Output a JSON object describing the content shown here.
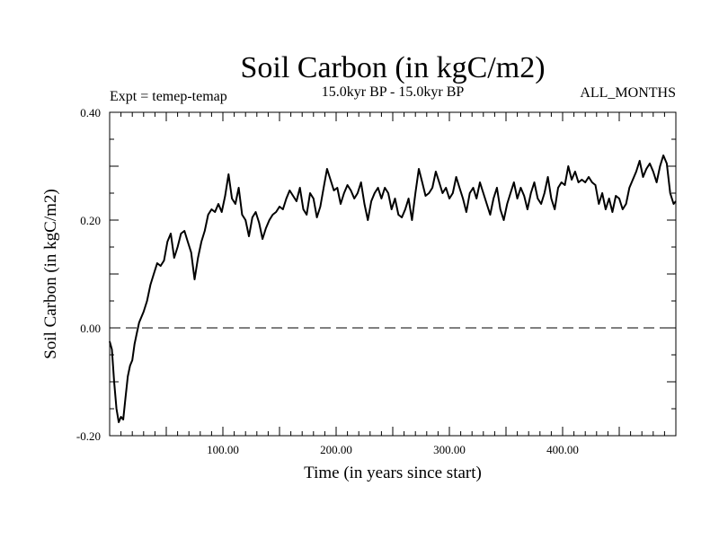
{
  "chart_data": {
    "type": "line",
    "title": "Soil Carbon (in kgC/m2)",
    "subtitle_left": "Expt = temep-temap",
    "subtitle_center": "15.0kyr BP - 15.0kyr BP",
    "subtitle_right": "ALL_MONTHS",
    "xlabel": "Time (in years since start)",
    "ylabel": "Soil Carbon (in kgC/m2)",
    "xlim": [
      0,
      500
    ],
    "ylim": [
      -0.2,
      0.4
    ],
    "x_ticks": [
      100,
      200,
      300,
      400
    ],
    "x_tick_labels": [
      "100.00",
      "200.00",
      "300.00",
      "400.00"
    ],
    "y_ticks": [
      -0.2,
      0.0,
      0.2,
      0.4
    ],
    "y_tick_labels": [
      "-0.20",
      "0.00",
      "0.20",
      "0.40"
    ],
    "reference_line": {
      "y": 0.0,
      "style": "dashed"
    },
    "series": [
      {
        "name": "Soil Carbon",
        "x": [
          0,
          2,
          4,
          6,
          8,
          10,
          12,
          14,
          16,
          18,
          20,
          22,
          24,
          26,
          28,
          30,
          33,
          36,
          39,
          42,
          45,
          48,
          51,
          54,
          57,
          60,
          63,
          66,
          69,
          72,
          75,
          78,
          81,
          84,
          87,
          90,
          93,
          96,
          99,
          102,
          105,
          108,
          111,
          114,
          117,
          120,
          123,
          126,
          129,
          132,
          135,
          138,
          141,
          144,
          147,
          150,
          153,
          156,
          159,
          162,
          165,
          168,
          171,
          174,
          177,
          180,
          183,
          186,
          189,
          192,
          195,
          198,
          201,
          204,
          207,
          210,
          213,
          216,
          219,
          222,
          225,
          228,
          231,
          234,
          237,
          240,
          243,
          246,
          249,
          252,
          255,
          258,
          261,
          264,
          267,
          270,
          273,
          276,
          279,
          282,
          285,
          288,
          291,
          294,
          297,
          300,
          303,
          306,
          309,
          312,
          315,
          318,
          321,
          324,
          327,
          330,
          333,
          336,
          339,
          342,
          345,
          348,
          351,
          354,
          357,
          360,
          363,
          366,
          369,
          372,
          375,
          378,
          381,
          384,
          387,
          390,
          393,
          396,
          399,
          402,
          405,
          408,
          411,
          414,
          417,
          420,
          423,
          426,
          429,
          432,
          435,
          438,
          441,
          444,
          447,
          450,
          453,
          456,
          459,
          462,
          465,
          468,
          471,
          474,
          477,
          480,
          483,
          486,
          489,
          492,
          495,
          498,
          500
        ],
        "values": [
          -0.025,
          -0.04,
          -0.1,
          -0.15,
          -0.175,
          -0.165,
          -0.17,
          -0.13,
          -0.09,
          -0.07,
          -0.06,
          -0.03,
          -0.01,
          0.01,
          0.02,
          0.03,
          0.05,
          0.08,
          0.1,
          0.12,
          0.115,
          0.125,
          0.16,
          0.175,
          0.13,
          0.15,
          0.175,
          0.18,
          0.16,
          0.14,
          0.09,
          0.13,
          0.16,
          0.18,
          0.21,
          0.22,
          0.215,
          0.23,
          0.215,
          0.245,
          0.285,
          0.24,
          0.23,
          0.26,
          0.21,
          0.2,
          0.17,
          0.205,
          0.215,
          0.195,
          0.165,
          0.185,
          0.2,
          0.21,
          0.215,
          0.225,
          0.22,
          0.24,
          0.255,
          0.245,
          0.235,
          0.26,
          0.22,
          0.21,
          0.25,
          0.24,
          0.205,
          0.225,
          0.26,
          0.295,
          0.275,
          0.255,
          0.26,
          0.23,
          0.25,
          0.265,
          0.255,
          0.24,
          0.25,
          0.27,
          0.23,
          0.2,
          0.235,
          0.25,
          0.26,
          0.24,
          0.26,
          0.25,
          0.22,
          0.24,
          0.21,
          0.205,
          0.22,
          0.24,
          0.2,
          0.25,
          0.295,
          0.27,
          0.245,
          0.25,
          0.26,
          0.29,
          0.27,
          0.25,
          0.26,
          0.24,
          0.25,
          0.28,
          0.26,
          0.24,
          0.215,
          0.25,
          0.26,
          0.24,
          0.27,
          0.25,
          0.23,
          0.21,
          0.24,
          0.26,
          0.22,
          0.2,
          0.23,
          0.25,
          0.27,
          0.24,
          0.26,
          0.245,
          0.22,
          0.25,
          0.27,
          0.24,
          0.23,
          0.25,
          0.28,
          0.24,
          0.22,
          0.26,
          0.27,
          0.265,
          0.3,
          0.275,
          0.29,
          0.27,
          0.275,
          0.27,
          0.28,
          0.27,
          0.265,
          0.23,
          0.25,
          0.22,
          0.24,
          0.215,
          0.245,
          0.24,
          0.22,
          0.23,
          0.26,
          0.275,
          0.29,
          0.31,
          0.28,
          0.295,
          0.305,
          0.29,
          0.27,
          0.3,
          0.32,
          0.305,
          0.25,
          0.23,
          0.235
        ]
      }
    ]
  }
}
